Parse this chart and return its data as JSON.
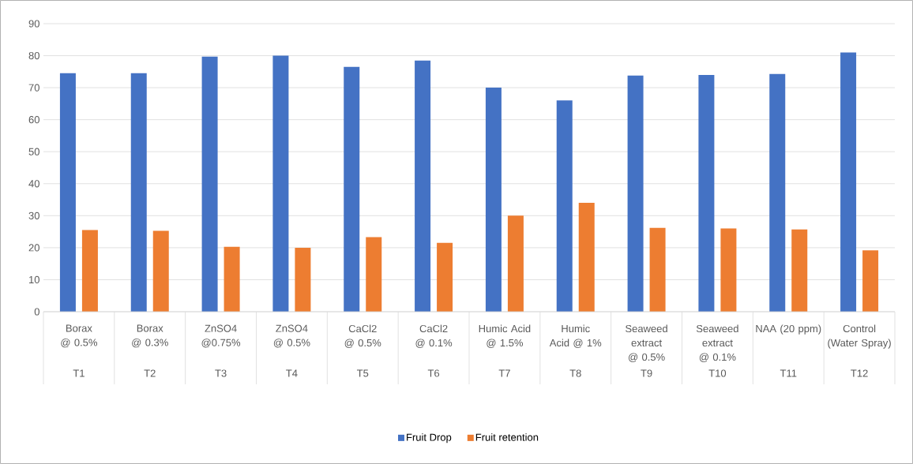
{
  "chart_data": {
    "type": "bar",
    "categories": [
      "Borax @ 0.5%",
      "Borax @ 0.3%",
      "ZnSO4 @0.75%",
      "ZnSO4 @ 0.5%",
      "CaCl2 @ 0.5%",
      "CaCl2 @ 0.1%",
      "Humic Acid @ 1.5%",
      "Humic Acid @ 1%",
      "Seaweed extract @ 0.5%",
      "Seaweed extract @ 0.1%",
      "NAA (20 ppm)",
      "Control (Water Spray)"
    ],
    "series": [
      {
        "name": "Fruit Drop",
        "color": "#4472c4",
        "values": [
          74.5,
          74.5,
          79.7,
          80,
          76.5,
          78.5,
          70,
          66,
          73.8,
          74,
          74.3,
          81
        ]
      },
      {
        "name": "Fruit retention",
        "color": "#ed7d31",
        "values": [
          25.5,
          25.3,
          20.3,
          20,
          23.3,
          21.5,
          30,
          34,
          26.2,
          26,
          25.7,
          19.2
        ]
      }
    ],
    "ylim": [
      0,
      90
    ],
    "yticks": [
      0,
      10,
      20,
      30,
      40,
      50,
      60,
      70,
      80,
      90
    ],
    "grid": "y",
    "legend": "bottom",
    "annotations": [
      "T1",
      "T2",
      "T3",
      "T4",
      "T5",
      "T6",
      "T7",
      "T8",
      "T9",
      "T10",
      "T11",
      "T12"
    ]
  }
}
